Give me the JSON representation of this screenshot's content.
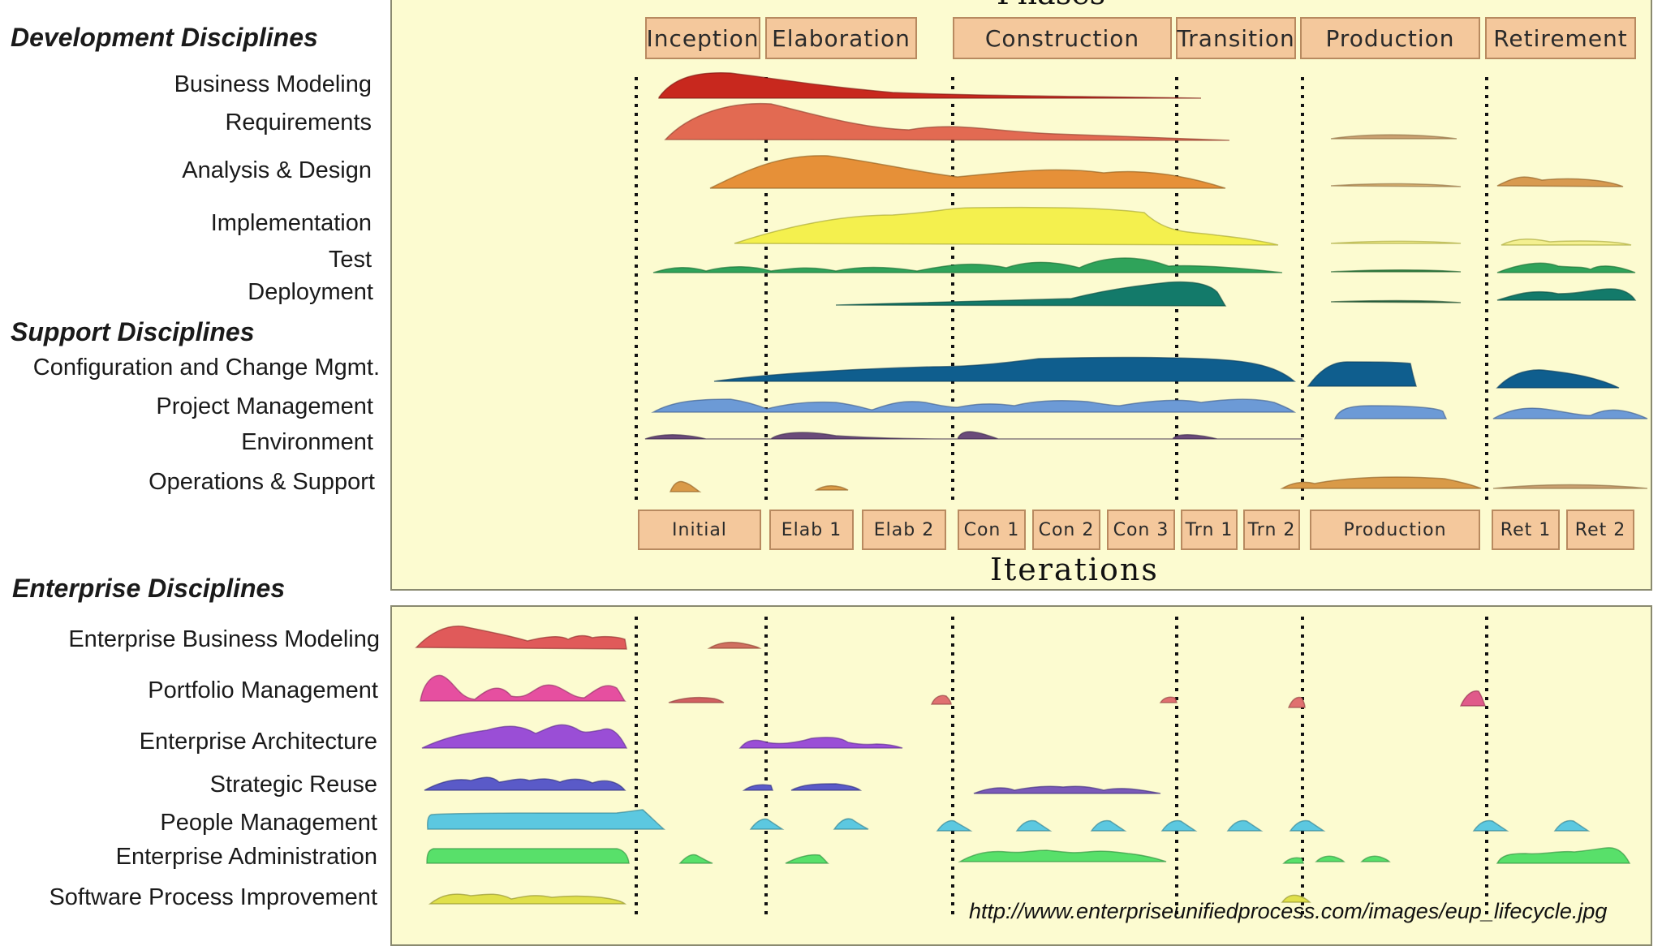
{
  "sections": {
    "development": "Development Disciplines",
    "support": "Support Disciplines",
    "enterprise": "Enterprise Disciplines"
  },
  "disciplines": {
    "business_modeling": "Business Modeling",
    "requirements": "Requirements",
    "analysis_design": "Analysis & Design",
    "implementation": "Implementation",
    "test": "Test",
    "deployment": "Deployment",
    "config_change": "Configuration and Change Mgmt.",
    "project_mgmt": "Project Management",
    "environment": "Environment",
    "ops_support": "Operations & Support",
    "enterprise_business_modeling": "Enterprise Business Modeling",
    "portfolio_mgmt": "Portfolio Management",
    "enterprise_architecture": "Enterprise Architecture",
    "strategic_reuse": "Strategic Reuse",
    "people_mgmt": "People Management",
    "enterprise_admin": "Enterprise Administration",
    "spi": "Software Process Improvement"
  },
  "phases": {
    "title": "Phases",
    "items": [
      "Inception",
      "Elaboration",
      "Construction",
      "Transition",
      "Production",
      "Retirement"
    ]
  },
  "iterations": {
    "title": "Iterations",
    "items": [
      "Initial",
      "Elab 1",
      "Elab 2",
      "Con 1",
      "Con 2",
      "Con 3",
      "Trn 1",
      "Trn 2",
      "Production",
      "Ret 1",
      "Ret 2"
    ]
  },
  "source_url": "http://www.enterpriseunifiedprocess.com/images/eup_lifecycle.jpg",
  "colors": {
    "panel_bg": "#fcfbd0",
    "box_fill": "#f4c89c",
    "business_modeling": "#c8281e",
    "requirements": "#e26a52",
    "analysis_design": "#e69038",
    "implementation": "#f4f04e",
    "test": "#2fa35a",
    "deployment": "#137a6a",
    "config_change": "#0f5e8e",
    "project_mgmt": "#6c9ad6",
    "environment": "#6a4a7a",
    "ops_support": "#d99a48",
    "ebm": "#e05a5a",
    "portfolio": "#e64fa0",
    "ea": "#9a4ed6",
    "reuse": "#5a5ac8",
    "people": "#5cc8e0",
    "admin": "#58e06a",
    "spi": "#e0e04a"
  }
}
